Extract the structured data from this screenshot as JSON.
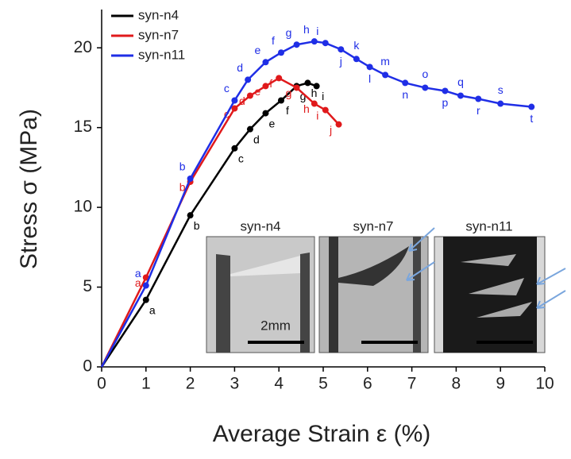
{
  "chart_data": {
    "type": "line",
    "xlabel": "Average Strain ε (%)",
    "ylabel": "Stress σ (MPa)",
    "xlim": [
      0,
      10
    ],
    "ylim": [
      0,
      22.4
    ],
    "xticks": [
      0,
      1,
      2,
      3,
      4,
      5,
      6,
      7,
      8,
      9,
      10
    ],
    "yticks": [
      0,
      5,
      10,
      15,
      20
    ],
    "series": [
      {
        "name": "syn-n4",
        "color": "#000000",
        "x": [
          0,
          1,
          2,
          3,
          3.35,
          3.7,
          4.05,
          4.4,
          4.65,
          4.85
        ],
        "values": [
          0,
          4.2,
          9.5,
          13.7,
          14.9,
          15.9,
          16.7,
          17.6,
          17.8,
          17.6
        ],
        "point_labels": [
          null,
          "a",
          "b",
          "c",
          "d",
          "e",
          "f",
          "g",
          "h",
          "i"
        ]
      },
      {
        "name": "syn-n7",
        "color": "#e0191b",
        "x": [
          0,
          1,
          2,
          3,
          3.35,
          3.7,
          4.0,
          4.4,
          4.8,
          5.05,
          5.35
        ],
        "values": [
          0,
          5.6,
          11.6,
          16.2,
          17.0,
          17.6,
          18.1,
          17.5,
          16.5,
          16.1,
          15.2
        ],
        "point_labels": [
          null,
          "a",
          "b",
          "c",
          "d",
          "e",
          "f",
          "g",
          "h",
          "i",
          "j"
        ]
      },
      {
        "name": "syn-n11",
        "color": "#1f2ee6",
        "x": [
          0,
          1,
          2,
          3,
          3.3,
          3.7,
          4.05,
          4.4,
          4.8,
          5.05,
          5.4,
          5.75,
          6.05,
          6.4,
          6.85,
          7.3,
          7.75,
          8.1,
          8.5,
          9.0,
          9.7
        ],
        "values": [
          0,
          5.1,
          11.8,
          16.7,
          18.0,
          19.1,
          19.7,
          20.2,
          20.4,
          20.3,
          19.9,
          19.3,
          18.8,
          18.3,
          17.8,
          17.5,
          17.3,
          17.0,
          16.8,
          16.5,
          16.3
        ],
        "point_labels": [
          null,
          "a",
          "b",
          "c",
          "d",
          "e",
          "f",
          "g",
          "h",
          "i",
          "j",
          "k",
          "l",
          "m",
          "n",
          "o",
          "p",
          "q",
          "r",
          "s",
          "t"
        ]
      }
    ],
    "inset": {
      "panels": [
        "syn-n4",
        "syn-n7",
        "syn-n11"
      ],
      "scale_bar": "2mm"
    }
  }
}
